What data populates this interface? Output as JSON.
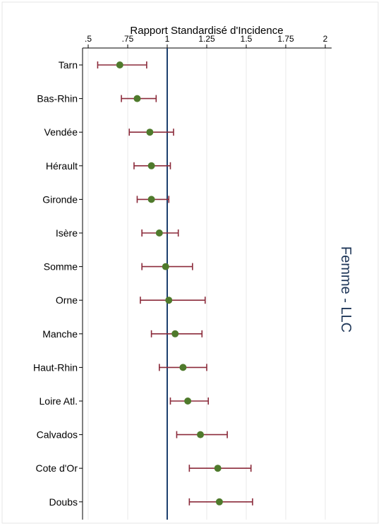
{
  "chart_data": {
    "type": "scatter",
    "subtype": "forest-plot",
    "title": "Rapport Standardisé d'Incidence",
    "side_title": "Femme - LLC",
    "xlim": [
      0.5,
      2
    ],
    "x_ticks": [
      0.5,
      0.75,
      1,
      1.25,
      1.5,
      1.75,
      2
    ],
    "x_tick_labels": [
      ".5",
      ".75",
      "1",
      "1.25",
      "1.5",
      "1.75",
      "2"
    ],
    "axis_position": "top",
    "grid": true,
    "reference_line": 1,
    "colors": {
      "point": "#4f7a2c",
      "ci": "#8b2a3a",
      "reference": "#1d3f6e",
      "side_title": "#1d3557"
    },
    "categories": [
      "Tarn",
      "Bas-Rhin",
      "Vendée",
      "Hérault",
      "Gironde",
      "Isère",
      "Somme",
      "Orne",
      "Manche",
      "Haut-Rhin",
      "Loire Atl.",
      "Calvados",
      "Cote d'Or",
      "Doubs"
    ],
    "values": [
      0.7,
      0.81,
      0.89,
      0.9,
      0.9,
      0.95,
      0.99,
      1.01,
      1.05,
      1.1,
      1.13,
      1.21,
      1.32,
      1.33
    ],
    "ci_lower": [
      0.56,
      0.71,
      0.76,
      0.79,
      0.81,
      0.84,
      0.84,
      0.83,
      0.9,
      0.95,
      1.02,
      1.06,
      1.14,
      1.14
    ],
    "ci_upper": [
      0.87,
      0.93,
      1.04,
      1.02,
      1.01,
      1.07,
      1.16,
      1.24,
      1.22,
      1.25,
      1.26,
      1.38,
      1.53,
      1.54
    ]
  }
}
